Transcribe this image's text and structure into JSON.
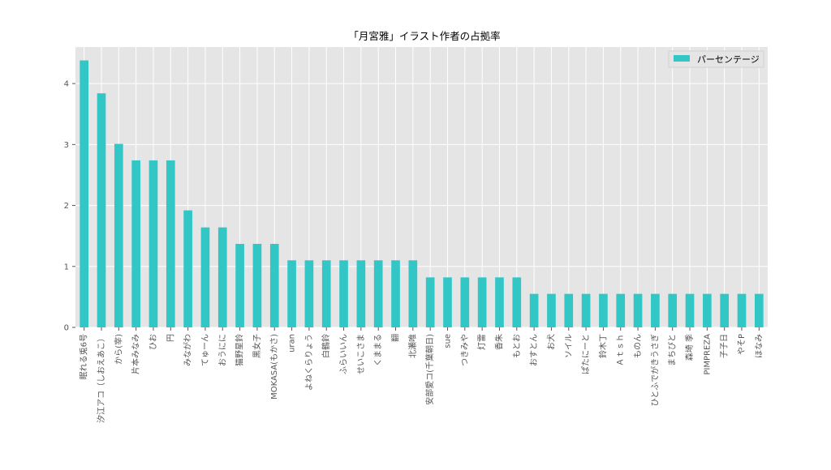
{
  "chart_data": {
    "type": "bar",
    "title": "「月宮雅」イラスト作者の占拠率",
    "xlabel": "",
    "ylabel": "",
    "ylim": [
      0,
      4.6
    ],
    "yticks": [
      0,
      1,
      2,
      3,
      4
    ],
    "grid": true,
    "legend_position": "top-right",
    "categories": [
      "眠れる兎6号",
      "汐江アコ（しおえあこ）",
      "から(宰)",
      "片本みなみ",
      "ひお",
      "円",
      "みながわ",
      "てゅーん",
      "おうにに",
      "猫野星鈴",
      "黒女子",
      "MOKASA(もかさ)",
      "uran",
      "よねくらりょう",
      "白鶴鈴",
      "ふらいいん",
      "せいこさま",
      "くままる",
      "翻",
      "北瀬唯",
      "安部愛コ(千葉朝日)",
      "sue",
      "つきみや",
      "灯雷",
      "香朱",
      "もとお",
      "おすとん",
      "お犬",
      "ソイル",
      "ぱたにーと",
      "鈴木丁",
      "Ａｔｓｈ",
      "ものん",
      "ひとふでがきうさぎ",
      "まちぴと",
      "森埼 季",
      "PIMPREZA",
      "子子日",
      "やそP",
      "ほなみ"
    ],
    "series": [
      {
        "name": "パーセンテージ",
        "color": "#33c6c6",
        "values": [
          4.38,
          3.84,
          3.01,
          2.74,
          2.74,
          2.74,
          1.92,
          1.64,
          1.64,
          1.37,
          1.37,
          1.37,
          1.1,
          1.1,
          1.1,
          1.1,
          1.1,
          1.1,
          1.1,
          1.1,
          0.82,
          0.82,
          0.82,
          0.82,
          0.82,
          0.82,
          0.55,
          0.55,
          0.55,
          0.55,
          0.55,
          0.55,
          0.55,
          0.55,
          0.55,
          0.55,
          0.55,
          0.55,
          0.55,
          0.55
        ]
      }
    ]
  }
}
